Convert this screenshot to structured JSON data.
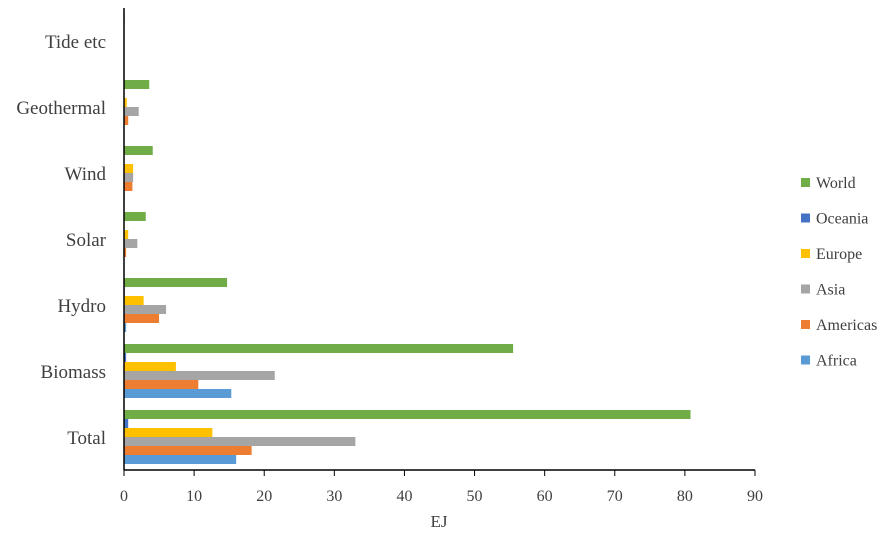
{
  "chart_data": {
    "type": "bar",
    "orientation": "horizontal",
    "categories": [
      "Total",
      "Biomass",
      "Hydro",
      "Solar",
      "Wind",
      "Geothermal",
      "Tide etc"
    ],
    "series": [
      {
        "name": "Africa",
        "color": "#5B9BD5",
        "values": [
          16.0,
          15.3,
          0.3,
          0.05,
          0.1,
          0.05,
          0.0
        ]
      },
      {
        "name": "Americas",
        "color": "#ED7D31",
        "values": [
          18.2,
          10.6,
          5.0,
          0.3,
          1.2,
          0.6,
          0.0
        ]
      },
      {
        "name": "Asia",
        "color": "#A5A5A5",
        "values": [
          33.0,
          21.5,
          6.0,
          1.9,
          1.3,
          2.1,
          0.0
        ]
      },
      {
        "name": "Europe",
        "color": "#FFC000",
        "values": [
          12.6,
          7.4,
          2.8,
          0.6,
          1.3,
          0.4,
          0.0
        ]
      },
      {
        "name": "Oceania",
        "color": "#4472C4",
        "values": [
          0.6,
          0.3,
          0.1,
          0.05,
          0.05,
          0.05,
          0.0
        ]
      },
      {
        "name": "World",
        "color": "#70AD47",
        "values": [
          80.8,
          55.5,
          14.7,
          3.1,
          4.1,
          3.6,
          0.1
        ]
      }
    ],
    "title": "",
    "xlabel": "EJ",
    "ylabel": "",
    "xlim": [
      0,
      90
    ],
    "xticks": [
      "0",
      "10",
      "20",
      "30",
      "40",
      "50",
      "60",
      "70",
      "80",
      "90"
    ],
    "grid": false,
    "legend_position": "right",
    "legend_order": [
      "World",
      "Oceania",
      "Europe",
      "Asia",
      "Americas",
      "Africa"
    ]
  }
}
